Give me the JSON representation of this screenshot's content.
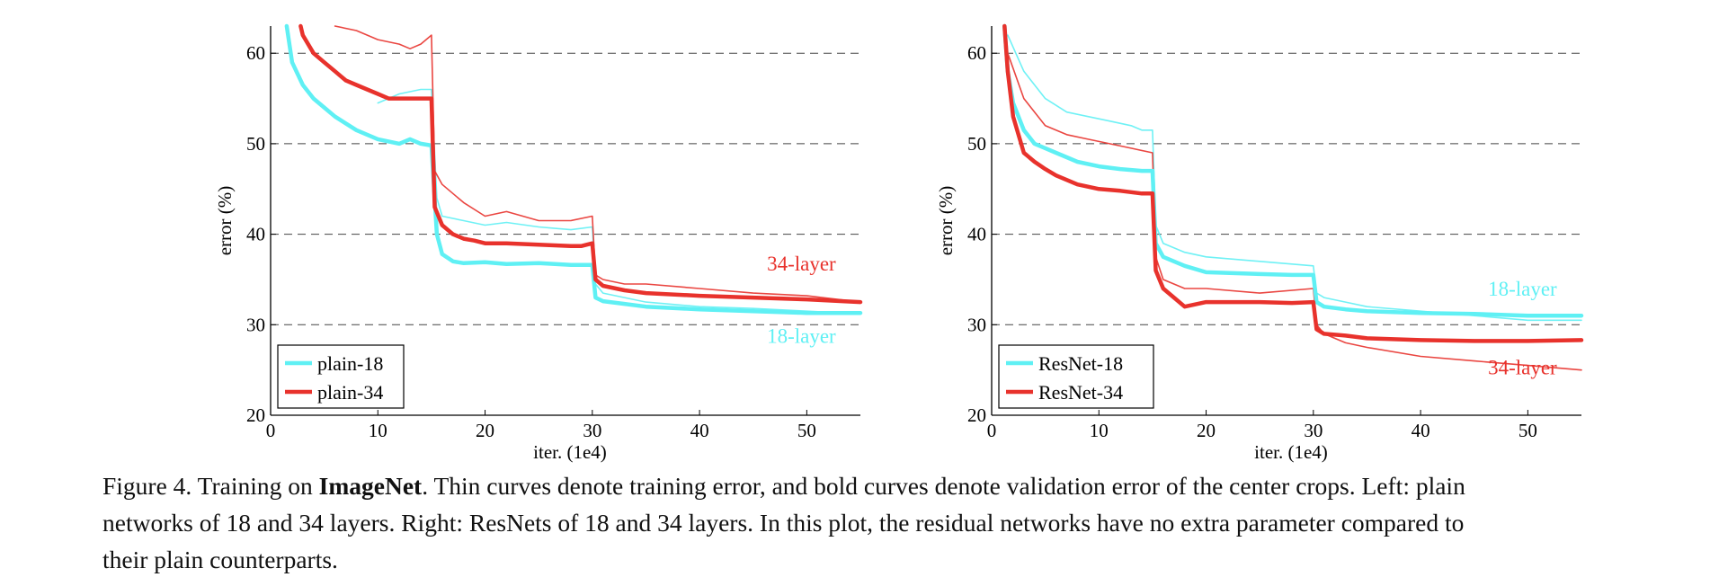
{
  "chart_data": [
    {
      "type": "line",
      "ylabel": "error (%)",
      "xlabel": "iter. (1e4)",
      "xlim": [
        0,
        55
      ],
      "ylim": [
        20,
        63
      ],
      "xticks": [
        "0",
        "10",
        "20",
        "30",
        "40",
        "50"
      ],
      "yticks": [
        "20",
        "30",
        "40",
        "50",
        "60"
      ],
      "grid": "dashed horizontal at 30, 40, 50, 60",
      "legend": {
        "placement": "bottom-left",
        "entries": [
          "plain-18",
          "plain-34"
        ]
      },
      "annotations": [
        {
          "text": "34-layer",
          "color": "#e8322c",
          "x": 49.5,
          "y": 36
        },
        {
          "text": "18-layer",
          "color": "#5ff0f4",
          "x": 49.5,
          "y": 28
        }
      ],
      "series": [
        {
          "name": "plain-18",
          "kind": "validation",
          "color": "#5ff0f4",
          "x": [
            1.5,
            2,
            3,
            4,
            5,
            6,
            8,
            10,
            12,
            13,
            14,
            15,
            15.5,
            16,
            17,
            18,
            20,
            22,
            25,
            28,
            30,
            30.3,
            31,
            33,
            35,
            40,
            45,
            50,
            55
          ],
          "y": [
            63,
            59,
            56.5,
            55,
            54,
            53,
            51.5,
            50.5,
            50,
            50.5,
            50,
            49.8,
            40,
            37.8,
            37,
            36.8,
            36.9,
            36.7,
            36.8,
            36.6,
            36.6,
            33,
            32.6,
            32.3,
            32.0,
            31.7,
            31.5,
            31.3,
            31.3
          ]
        },
        {
          "name": "plain-34",
          "kind": "validation",
          "color": "#e8322c",
          "x": [
            2.8,
            3,
            4,
            5,
            6,
            7,
            8,
            9,
            10,
            11,
            12,
            13,
            14,
            15,
            15.3,
            16,
            17,
            18,
            19,
            20,
            22,
            24,
            26,
            28,
            29,
            30,
            30.3,
            31,
            33,
            35,
            40,
            45,
            50,
            55
          ],
          "y": [
            63,
            62,
            60,
            59,
            58,
            57,
            56.5,
            56,
            55.5,
            55,
            55,
            55,
            55,
            55,
            43,
            41,
            40,
            39.5,
            39.3,
            39,
            39,
            38.9,
            38.8,
            38.7,
            38.7,
            39,
            35,
            34.3,
            33.8,
            33.5,
            33.2,
            33.0,
            32.8,
            32.5
          ]
        },
        {
          "name": "plain-18",
          "kind": "training",
          "color": "#5ff0f4",
          "x": [
            10,
            12,
            14,
            15,
            15.5,
            16,
            18,
            20,
            22,
            25,
            28,
            30,
            30.3,
            31,
            33,
            35,
            40,
            45,
            50,
            55
          ],
          "y": [
            54.5,
            55.5,
            56,
            56,
            44,
            42,
            41.5,
            41,
            41.3,
            40.8,
            40.5,
            40.8,
            34.5,
            33.5,
            33,
            32.5,
            32,
            31.8,
            31.5,
            31.2
          ]
        },
        {
          "name": "plain-34",
          "kind": "training",
          "color": "#e8322c",
          "x": [
            6,
            8,
            10,
            12,
            13,
            14,
            15,
            15.3,
            16,
            18,
            20,
            22,
            25,
            28,
            30,
            30.3,
            31,
            33,
            35,
            40,
            45,
            50,
            55
          ],
          "y": [
            63,
            62.5,
            61.5,
            61,
            60.5,
            61,
            62,
            47,
            45.5,
            43.5,
            42,
            42.5,
            41.5,
            41.5,
            42,
            35.5,
            35,
            34.5,
            34.5,
            34,
            33.5,
            33.2,
            32.5
          ]
        }
      ]
    },
    {
      "type": "line",
      "ylabel": "error (%)",
      "xlabel": "iter. (1e4)",
      "xlim": [
        0,
        55
      ],
      "ylim": [
        20,
        63
      ],
      "xticks": [
        "0",
        "10",
        "20",
        "30",
        "40",
        "50"
      ],
      "yticks": [
        "20",
        "30",
        "40",
        "50",
        "60"
      ],
      "grid": "dashed horizontal at 30, 40, 50, 60",
      "legend": {
        "placement": "bottom-left",
        "entries": [
          "ResNet-18",
          "ResNet-34"
        ]
      },
      "annotations": [
        {
          "text": "18-layer",
          "color": "#5ff0f4",
          "x": 49.5,
          "y": 33.2
        },
        {
          "text": "34-layer",
          "color": "#e8322c",
          "x": 49.5,
          "y": 24.5
        }
      ],
      "series": [
        {
          "name": "ResNet-18",
          "kind": "validation",
          "color": "#5ff0f4",
          "x": [
            1.2,
            1.5,
            2,
            3,
            4,
            5,
            6,
            8,
            10,
            12,
            14,
            15,
            15.3,
            16,
            18,
            20,
            25,
            28,
            30,
            30.3,
            31,
            33,
            35,
            40,
            45,
            50,
            55
          ],
          "y": [
            63,
            58,
            54.5,
            51.5,
            50,
            49.5,
            49,
            48,
            47.5,
            47.2,
            47,
            47,
            39,
            37.5,
            36.5,
            35.8,
            35.6,
            35.5,
            35.5,
            32.5,
            32,
            31.7,
            31.5,
            31.3,
            31.2,
            31,
            31
          ]
        },
        {
          "name": "ResNet-34",
          "kind": "validation",
          "color": "#e8322c",
          "x": [
            1.2,
            1.5,
            2,
            3,
            4,
            5,
            6,
            8,
            10,
            12,
            14,
            15,
            15.3,
            16,
            17,
            18,
            20,
            25,
            28,
            30,
            30.3,
            31,
            33,
            35,
            40,
            45,
            50,
            55
          ],
          "y": [
            63,
            58,
            53,
            49,
            48,
            47.2,
            46.5,
            45.5,
            45,
            44.8,
            44.5,
            44.5,
            36,
            34,
            33,
            32,
            32.5,
            32.5,
            32.4,
            32.5,
            29.5,
            29,
            28.8,
            28.5,
            28.3,
            28.2,
            28.2,
            28.3
          ]
        },
        {
          "name": "ResNet-18",
          "kind": "training",
          "color": "#5ff0f4",
          "x": [
            1.5,
            3,
            5,
            7,
            9,
            11,
            13,
            14,
            15,
            15.3,
            16,
            18,
            20,
            25,
            30,
            30.3,
            31,
            33,
            35,
            40,
            45,
            50,
            55
          ],
          "y": [
            62,
            58,
            55,
            53.5,
            53,
            52.5,
            52,
            51.5,
            51.5,
            41,
            39,
            38,
            37.5,
            37,
            36.5,
            33.5,
            33,
            32.5,
            32,
            31.5,
            31,
            30.5,
            30.5
          ]
        },
        {
          "name": "ResNet-34",
          "kind": "training",
          "color": "#e8322c",
          "x": [
            1.5,
            3,
            5,
            7,
            9,
            11,
            13,
            15,
            15.3,
            16,
            18,
            20,
            25,
            30,
            30.3,
            31,
            33,
            35,
            40,
            45,
            50,
            55
          ],
          "y": [
            60,
            55,
            52,
            51,
            50.5,
            50,
            49.5,
            49,
            37.5,
            35,
            34,
            34,
            33.5,
            34,
            30,
            29,
            28,
            27.5,
            26.5,
            26,
            25.5,
            25
          ]
        }
      ]
    }
  ],
  "caption": {
    "line1_prefix": "Figure 4. Training on ",
    "line1_bold": "ImageNet",
    "line1_rest": ". Thin curves denote training error, and bold curves denote validation error of the center crops. Left: plain",
    "line2": "networks of 18 and 34 layers. Right: ResNets of 18 and 34 layers. In this plot, the residual networks have no extra parameter compared to",
    "line3": "their plain counterparts."
  }
}
